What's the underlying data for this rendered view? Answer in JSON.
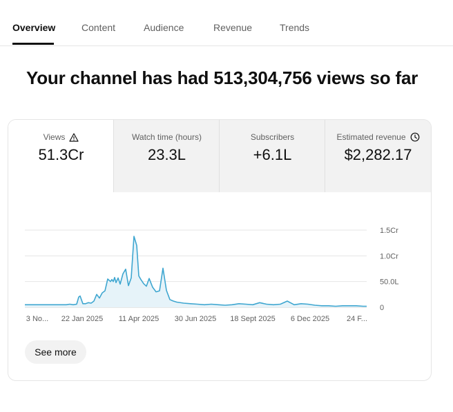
{
  "tabs": [
    "Overview",
    "Content",
    "Audience",
    "Revenue",
    "Trends"
  ],
  "active_tab": "Overview",
  "headline": "Your channel has had 513,304,756 views so far",
  "metrics": [
    {
      "label": "Views",
      "value": "51.3Cr",
      "icon": "warning-triangle-icon"
    },
    {
      "label": "Watch time (hours)",
      "value": "23.3L"
    },
    {
      "label": "Subscribers",
      "value": "+6.1L"
    },
    {
      "label": "Estimated revenue",
      "value": "$2,282.17",
      "icon": "clock-icon"
    }
  ],
  "see_more_label": "See more",
  "colors": {
    "accent": "#3ea6d0",
    "fill": "#e6f3f9",
    "grid": "#e5e5e5"
  },
  "chart_data": {
    "type": "area",
    "series_metric": "Views",
    "x_tick_labels": [
      "3 No...",
      "22 Jan 2025",
      "11 Apr 2025",
      "30 Jun 2025",
      "18 Sept 2025",
      "6 Dec 2025",
      "24 F..."
    ],
    "y_tick_labels": [
      "0",
      "50.0L",
      "1.0Cr",
      "1.5Cr"
    ],
    "ylim": [
      0,
      15000000
    ],
    "grid": true,
    "x": [
      0,
      5,
      10,
      15,
      20,
      25,
      30,
      35,
      40,
      45,
      50,
      55,
      60,
      65,
      70,
      75,
      78,
      80,
      84,
      88,
      92,
      96,
      100,
      104,
      108,
      112,
      116,
      120,
      124,
      126,
      128,
      130,
      132,
      135,
      138,
      142,
      146,
      150,
      154,
      158,
      162,
      165,
      168,
      172,
      176,
      180,
      185,
      190,
      195,
      200,
      205,
      210,
      215,
      220,
      230,
      240,
      250,
      260,
      270,
      280,
      290,
      300,
      310,
      320,
      330,
      340,
      350,
      360,
      370,
      380,
      390,
      400,
      410,
      420,
      430,
      440,
      450,
      460,
      470,
      480,
      490,
      495
    ],
    "values": [
      500000,
      500000,
      500000,
      500000,
      500000,
      500000,
      500000,
      500000,
      500000,
      500000,
      500000,
      500000,
      500000,
      600000,
      500000,
      600000,
      2000000,
      2200000,
      700000,
      700000,
      900000,
      800000,
      1200000,
      2500000,
      1800000,
      2800000,
      3200000,
      5500000,
      5000000,
      5400000,
      5000000,
      5800000,
      4800000,
      5700000,
      4500000,
      6500000,
      7400000,
      4200000,
      5700000,
      13800000,
      12000000,
      6100000,
      5400000,
      4600000,
      4100000,
      5600000,
      3900000,
      3000000,
      3200000,
      7600000,
      3300000,
      1500000,
      1200000,
      1000000,
      800000,
      700000,
      600000,
      500000,
      600000,
      500000,
      400000,
      500000,
      700000,
      600000,
      500000,
      900000,
      600000,
      500000,
      600000,
      1200000,
      500000,
      700000,
      600000,
      400000,
      300000,
      300000,
      200000,
      300000,
      300000,
      300000,
      200000,
      200000
    ]
  }
}
